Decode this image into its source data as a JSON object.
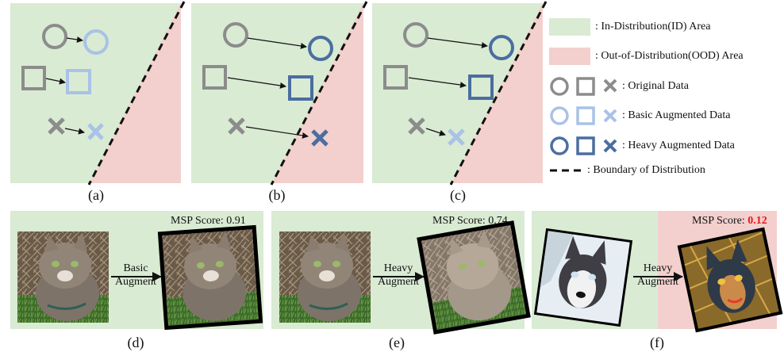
{
  "colors": {
    "id_area": "#d9ebd3",
    "ood_area": "#f3d0cd",
    "original": "#8c8c8c",
    "basic": "#a9c2e6",
    "heavy": "#4b6ea0",
    "boundary": "#111111",
    "score_low": "#e8141a"
  },
  "panels_top": [
    {
      "label": "(a)"
    },
    {
      "label": "(b)"
    },
    {
      "label": "(c)"
    }
  ],
  "legend": {
    "id_area": ": In-Distribution(ID) Area",
    "ood_area": ": Out-of-Distribution(OOD) Area",
    "original": ": Original Data",
    "basic": ": Basic Augmented Data",
    "heavy": ": Heavy Augmented Data",
    "boundary": ": Boundary of Distribution"
  },
  "panels_bottom": [
    {
      "label": "(d)",
      "score_prefix": "MSP Score: ",
      "score_value": "0.91",
      "augment_line1": "Basic",
      "augment_line2": "Augment",
      "source_image": "cat-photo",
      "result_image": "cat-photo-rotated"
    },
    {
      "label": "(e)",
      "score_prefix": "MSP Score: ",
      "score_value": "0.74",
      "augment_line1": "Heavy",
      "augment_line2": "Augment",
      "source_image": "cat-photo",
      "result_image": "cat-photo-heavy"
    },
    {
      "label": "(f)",
      "score_prefix": "MSP Score: ",
      "score_value": "0.12",
      "augment_line1": "Heavy",
      "augment_line2": "Augment",
      "source_image": "husky-photo",
      "result_image": "husky-photo-heavy"
    }
  ]
}
